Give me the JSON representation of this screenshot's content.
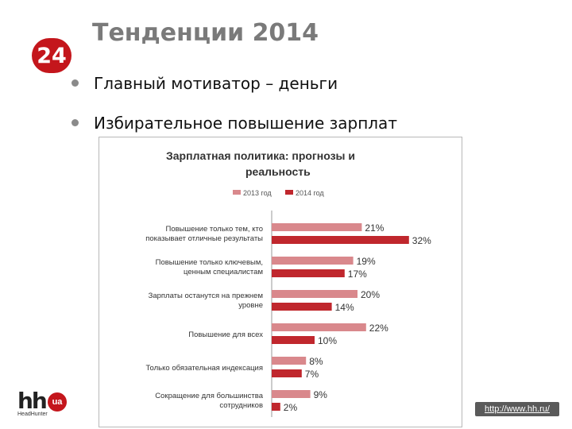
{
  "slide": {
    "number": "24",
    "title": "Тенденции 2014",
    "bullets": [
      "Главный мотиватор – деньги",
      "Избирательное повышение зарплат"
    ]
  },
  "logo": {
    "text": "hh",
    "badge": "ua",
    "subtitle": "HeadHunter"
  },
  "footer": {
    "url": "http://www.hh.ru/"
  },
  "colors": {
    "accent": "#c4161c",
    "series_2013": "#d9888c",
    "series_2014": "#c0272d"
  },
  "chart_data": {
    "type": "bar",
    "orientation": "horizontal",
    "title": "Зарплатная политика: прогнозы и реальность",
    "categories": [
      "Повышение только тем, кто показывает отличные результаты",
      "Повышение только ключевым, ценным специалистам",
      "Зарплаты останутся на прежнем уровне",
      "Повышение для всех",
      "Только обязательная индексация",
      "Сокращение для большинства сотрудников"
    ],
    "series": [
      {
        "name": "2013 год",
        "values": [
          21,
          19,
          20,
          22,
          8,
          9
        ]
      },
      {
        "name": "2014 год",
        "values": [
          32,
          17,
          14,
          10,
          7,
          2
        ]
      }
    ],
    "value_suffix": "%",
    "xlim": [
      0,
      35
    ],
    "legend": "top",
    "grid": false
  }
}
